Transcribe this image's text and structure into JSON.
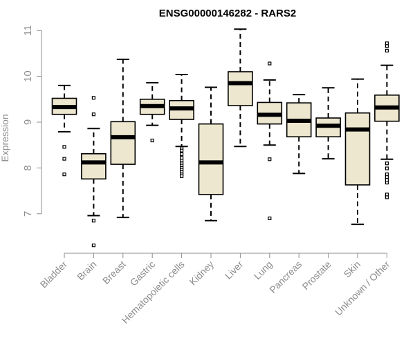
{
  "chart_data": {
    "type": "boxplot",
    "title": "ENSG00000146282 - RARS2",
    "xlabel": "",
    "ylabel": "Expression",
    "ylim": [
      6.25,
      11.15
    ],
    "yticks": [
      7,
      8,
      9,
      10,
      11
    ],
    "box_fill": "#ede7cf",
    "categories": [
      "Bladder",
      "Brain",
      "Breast",
      "Gastric",
      "Hematopoietic cells",
      "Kidney",
      "Liver",
      "Lung",
      "Pancreas",
      "Prostate",
      "Skin",
      "Unknown / Other"
    ],
    "boxes": [
      {
        "category": "Bladder",
        "q1": 9.17,
        "median": 9.33,
        "q3": 9.52,
        "whisker_low": 8.79,
        "whisker_high": 9.8,
        "outliers": [
          8.46,
          8.2,
          7.86
        ]
      },
      {
        "category": "Brain",
        "q1": 7.76,
        "median": 8.12,
        "q3": 8.31,
        "whisker_low": 6.96,
        "whisker_high": 8.86,
        "outliers": [
          9.53,
          9.17,
          6.85,
          6.31
        ]
      },
      {
        "category": "Breast",
        "q1": 8.08,
        "median": 8.67,
        "q3": 9.01,
        "whisker_low": 6.92,
        "whisker_high": 10.37,
        "outliers": []
      },
      {
        "category": "Gastric",
        "q1": 9.17,
        "median": 9.35,
        "q3": 9.5,
        "whisker_low": 8.93,
        "whisker_high": 9.86,
        "outliers": [
          8.6
        ]
      },
      {
        "category": "Hematopoietic cells",
        "q1": 9.06,
        "median": 9.3,
        "q3": 9.47,
        "whisker_low": 8.47,
        "whisker_high": 10.04,
        "outliers": [
          8.43,
          8.38,
          8.3,
          8.22,
          8.16,
          8.1,
          8.05,
          8.0,
          7.96,
          7.91,
          7.86,
          7.82
        ]
      },
      {
        "category": "Kidney",
        "q1": 7.42,
        "median": 8.12,
        "q3": 8.96,
        "whisker_low": 6.85,
        "whisker_high": 9.76,
        "outliers": []
      },
      {
        "category": "Liver",
        "q1": 9.36,
        "median": 9.85,
        "q3": 10.1,
        "whisker_low": 8.47,
        "whisker_high": 11.03,
        "outliers": []
      },
      {
        "category": "Lung",
        "q1": 8.96,
        "median": 9.16,
        "q3": 9.43,
        "whisker_low": 8.5,
        "whisker_high": 9.92,
        "outliers": [
          10.28,
          8.19,
          6.9
        ]
      },
      {
        "category": "Pancreas",
        "q1": 8.68,
        "median": 9.03,
        "q3": 9.42,
        "whisker_low": 7.88,
        "whisker_high": 9.6,
        "outliers": []
      },
      {
        "category": "Prostate",
        "q1": 8.68,
        "median": 8.92,
        "q3": 9.09,
        "whisker_low": 8.2,
        "whisker_high": 9.75,
        "outliers": []
      },
      {
        "category": "Skin",
        "q1": 7.63,
        "median": 8.84,
        "q3": 9.2,
        "whisker_low": 6.77,
        "whisker_high": 9.94,
        "outliers": []
      },
      {
        "category": "Unknown / Other",
        "q1": 9.02,
        "median": 9.32,
        "q3": 9.59,
        "whisker_low": 8.19,
        "whisker_high": 10.24,
        "outliers": [
          10.72,
          10.66,
          10.56,
          8.1,
          7.99,
          7.86,
          7.8,
          7.74,
          7.68,
          7.42,
          7.36
        ]
      }
    ]
  }
}
